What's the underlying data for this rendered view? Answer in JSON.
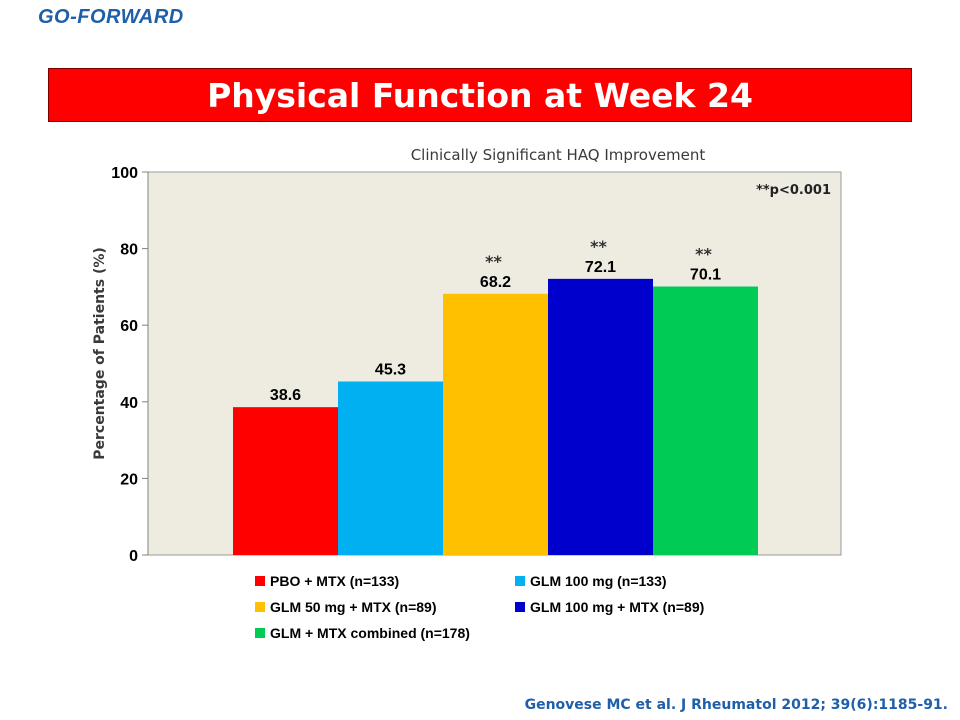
{
  "header": {
    "study_tag": "GO-FORWARD",
    "title": "Physical Function at Week 24"
  },
  "citation": "Genovese MC et al. J Rheumatol 2012; 39(6):1185-91.",
  "colors": {
    "banner": "#ff0000",
    "plot_bg": "#eeece1",
    "accent_text": "#1f5faa"
  },
  "chart_data": {
    "type": "bar",
    "title": "Clinically Significant HAQ Improvement",
    "xlabel": "",
    "ylabel": "Percentage of Patients (%)",
    "ylim": [
      0,
      100
    ],
    "yticks": [
      "0",
      "20",
      "40",
      "60",
      "80",
      "100"
    ],
    "grid": false,
    "legend_position": "bottom",
    "significance_note": "**p<0.001",
    "categories": [
      "PBO + MTX (n=133)",
      "GLM 100 mg (n=133)",
      "GLM 50 mg + MTX (n=89)",
      "GLM 100 mg + MTX (n=89)",
      "GLM + MTX combined (n=178)"
    ],
    "series": [
      {
        "name": "PBO + MTX (n=133)",
        "value": 38.6,
        "label": "38.6",
        "color": "#ff0000",
        "marker": ""
      },
      {
        "name": "GLM 100 mg (n=133)",
        "value": 45.3,
        "label": "45.3",
        "color": "#00b0f0",
        "marker": ""
      },
      {
        "name": "GLM 50 mg + MTX (n=89)",
        "value": 68.2,
        "label": "68.2",
        "color": "#ffc000",
        "marker": "**"
      },
      {
        "name": "GLM 100 mg + MTX (n=89)",
        "value": 72.1,
        "label": "72.1",
        "color": "#0000cc",
        "marker": "**"
      },
      {
        "name": "GLM + MTX combined (n=178)",
        "value": 70.1,
        "label": "70.1",
        "color": "#00cc55",
        "marker": "**"
      }
    ]
  }
}
